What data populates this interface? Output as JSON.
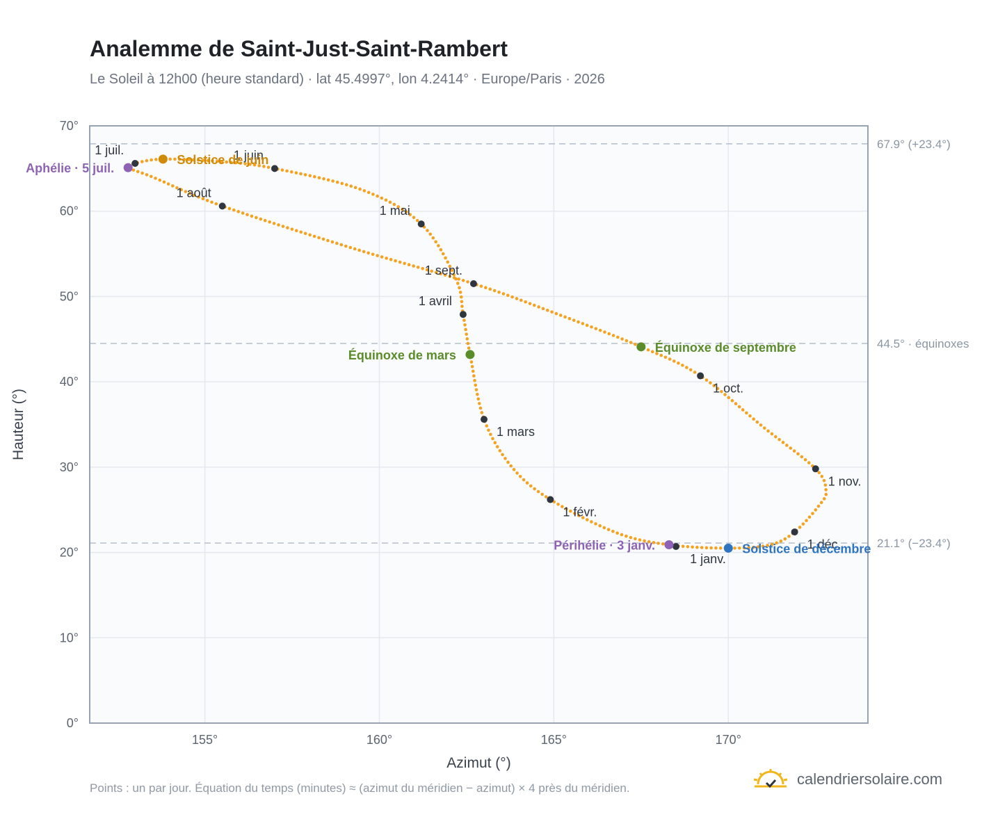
{
  "header": {
    "title": "Analemme de Saint-Just-Saint-Rambert",
    "subtitle": "Le Soleil à 12h00 (heure standard) · lat 45.4997°, lon 4.2414° · Europe/Paris · 2026"
  },
  "footer": {
    "note": "Points : un par jour. Équation du temps (minutes) ≈ (azimut du méridien − azimut) × 4 près du méridien.",
    "brand": "calendriersolaire.com",
    "brand_icon": "sun-logo-icon"
  },
  "colors": {
    "curve": "#f4a21f",
    "month_marker": "#2f3640",
    "solstice_june": "#d08a0a",
    "solstice_december": "#2f74c0",
    "equinox": "#5b8c2a",
    "apsis": "#8e63b5",
    "plot_bg": "#f9fbfd",
    "grid": "#e5e9ef",
    "refline": "#b9c3cf",
    "frame": "#97a3b3"
  },
  "chart_data": {
    "type": "scatter",
    "xlabel": "Azimut (°)",
    "ylabel": "Hauteur (°)",
    "xlim": [
      151.7,
      174
    ],
    "ylim": [
      0,
      70
    ],
    "x_ticks": [
      "155°",
      "160°",
      "165°",
      "170°"
    ],
    "x_tick_values": [
      155,
      160,
      165,
      170
    ],
    "y_ticks": [
      "0°",
      "10°",
      "20°",
      "30°",
      "40°",
      "50°",
      "60°",
      "70°"
    ],
    "y_tick_values": [
      0,
      10,
      20,
      30,
      40,
      50,
      60,
      70
    ],
    "grid": true,
    "reference_lines": [
      {
        "y": 67.9,
        "label": "67.9° (+23.4°)"
      },
      {
        "y": 44.5,
        "label": "44.5° · équinoxes"
      },
      {
        "y": 21.1,
        "label": "21.1° (−23.4°)"
      }
    ],
    "month_markers": [
      {
        "label": "1 janv.",
        "az": 168.5,
        "alt": 20.7
      },
      {
        "label": "1 févr.",
        "az": 164.9,
        "alt": 26.2
      },
      {
        "label": "1 mars",
        "az": 163.0,
        "alt": 35.6
      },
      {
        "label": "1 avril",
        "az": 162.4,
        "alt": 47.9
      },
      {
        "label": "1 mai",
        "az": 161.2,
        "alt": 58.5
      },
      {
        "label": "1 juin",
        "az": 157.0,
        "alt": 65.0
      },
      {
        "label": "1 juil.",
        "az": 153.0,
        "alt": 65.6
      },
      {
        "label": "1 août",
        "az": 155.5,
        "alt": 60.6
      },
      {
        "label": "1 sept.",
        "az": 162.7,
        "alt": 51.5
      },
      {
        "label": "1 oct.",
        "az": 169.2,
        "alt": 40.7
      },
      {
        "label": "1 nov.",
        "az": 172.5,
        "alt": 29.8
      },
      {
        "label": "1 déc.",
        "az": 171.9,
        "alt": 22.4
      }
    ],
    "events": [
      {
        "label": "Solstice de juin",
        "az": 153.8,
        "alt": 66.1,
        "kind": "solstice_june"
      },
      {
        "label": "Solstice de décembre",
        "az": 170.0,
        "alt": 20.5,
        "kind": "solstice_december"
      },
      {
        "label": "Équinoxe de mars",
        "az": 162.6,
        "alt": 43.2,
        "kind": "equinox"
      },
      {
        "label": "Équinoxe de septembre",
        "az": 167.5,
        "alt": 44.1,
        "kind": "equinox"
      },
      {
        "label": "Aphélie · 5 juil.",
        "az": 152.8,
        "alt": 65.1,
        "kind": "apsis"
      },
      {
        "label": "Périhélie · 3 janv.",
        "az": 168.3,
        "alt": 20.9,
        "kind": "apsis"
      }
    ],
    "curve_key_points": [
      [
        168.3,
        20.9
      ],
      [
        170.0,
        20.5
      ],
      [
        171.2,
        20.9
      ],
      [
        171.9,
        22.4
      ],
      [
        172.6,
        25.5
      ],
      [
        172.8,
        27.2
      ],
      [
        172.5,
        29.8
      ],
      [
        171.0,
        34.7
      ],
      [
        169.2,
        40.7
      ],
      [
        167.5,
        44.1
      ],
      [
        165.0,
        48.1
      ],
      [
        162.7,
        51.5
      ],
      [
        159.2,
        55.7
      ],
      [
        155.5,
        60.6
      ],
      [
        153.5,
        64.0
      ],
      [
        152.8,
        65.1
      ],
      [
        153.0,
        65.6
      ],
      [
        153.8,
        66.1
      ],
      [
        155.5,
        65.8
      ],
      [
        157.0,
        65.0
      ],
      [
        159.5,
        62.5
      ],
      [
        161.2,
        58.5
      ],
      [
        162.2,
        52.0
      ],
      [
        162.4,
        47.9
      ],
      [
        162.6,
        43.2
      ],
      [
        163.0,
        35.6
      ],
      [
        163.8,
        30.0
      ],
      [
        164.9,
        26.2
      ],
      [
        166.8,
        22.3
      ],
      [
        168.3,
        20.9
      ]
    ]
  }
}
